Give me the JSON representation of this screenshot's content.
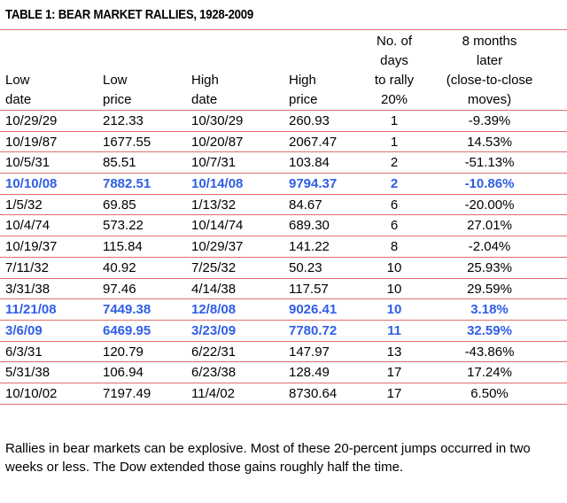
{
  "title": "TABLE 1: BEAR MARKET RALLIES, 1928-2009",
  "headers": {
    "low_date": [
      "Low",
      "date"
    ],
    "low_price": [
      "Low",
      "price"
    ],
    "high_date": [
      "High",
      "date"
    ],
    "high_price": [
      "High",
      "price"
    ],
    "days": [
      "No. of",
      "days",
      "to rally",
      "20%"
    ],
    "later": [
      "8 months",
      "later",
      "(close-to-close",
      "moves)"
    ]
  },
  "rows": [
    {
      "low_date": "10/29/29",
      "low_price": "212.33",
      "high_date": "10/30/29",
      "high_price": "260.93",
      "days": "1",
      "later": "-9.39%",
      "highlight": false
    },
    {
      "low_date": "10/19/87",
      "low_price": "1677.55",
      "high_date": "10/20/87",
      "high_price": "2067.47",
      "days": "1",
      "later": "14.53%",
      "highlight": false
    },
    {
      "low_date": "10/5/31",
      "low_price": "85.51",
      "high_date": "10/7/31",
      "high_price": "103.84",
      "days": "2",
      "later": "-51.13%",
      "highlight": false
    },
    {
      "low_date": "10/10/08",
      "low_price": "7882.51",
      "high_date": "10/14/08",
      "high_price": "9794.37",
      "days": "2",
      "later": "-10.86%",
      "highlight": true
    },
    {
      "low_date": "1/5/32",
      "low_price": "69.85",
      "high_date": "1/13/32",
      "high_price": "84.67",
      "days": "6",
      "later": "-20.00%",
      "highlight": false
    },
    {
      "low_date": "10/4/74",
      "low_price": "573.22",
      "high_date": "10/14/74",
      "high_price": "689.30",
      "days": "6",
      "later": "27.01%",
      "highlight": false
    },
    {
      "low_date": "10/19/37",
      "low_price": "115.84",
      "high_date": "10/29/37",
      "high_price": "141.22",
      "days": "8",
      "later": "-2.04%",
      "highlight": false
    },
    {
      "low_date": "7/11/32",
      "low_price": "40.92",
      "high_date": "7/25/32",
      "high_price": "50.23",
      "days": "10",
      "later": "25.93%",
      "highlight": false
    },
    {
      "low_date": "3/31/38",
      "low_price": "97.46",
      "high_date": "4/14/38",
      "high_price": "117.57",
      "days": "10",
      "later": "29.59%",
      "highlight": false
    },
    {
      "low_date": "11/21/08",
      "low_price": "7449.38",
      "high_date": "12/8/08",
      "high_price": "9026.41",
      "days": "10",
      "later": "3.18%",
      "highlight": true
    },
    {
      "low_date": "3/6/09",
      "low_price": "6469.95",
      "high_date": "3/23/09",
      "high_price": "7780.72",
      "days": "11",
      "later": "32.59%",
      "highlight": true
    },
    {
      "low_date": "6/3/31",
      "low_price": "120.79",
      "high_date": "6/22/31",
      "high_price": "147.97",
      "days": "13",
      "later": "-43.86%",
      "highlight": false
    },
    {
      "low_date": "5/31/38",
      "low_price": "106.94",
      "high_date": "6/23/38",
      "high_price": "128.49",
      "days": "17",
      "later": "17.24%",
      "highlight": false
    },
    {
      "low_date": "10/10/02",
      "low_price": "7197.49",
      "high_date": "11/4/02",
      "high_price": "8730.64",
      "days": "17",
      "later": "6.50%",
      "highlight": false
    }
  ],
  "caption": "Rallies in bear markets can be explosive. Most of these 20-percent jumps occurred in two weeks or less. The Dow extended those gains roughly half the time.",
  "colors": {
    "rule": "#e06d6d",
    "highlight_text": "#2f5ee6"
  }
}
